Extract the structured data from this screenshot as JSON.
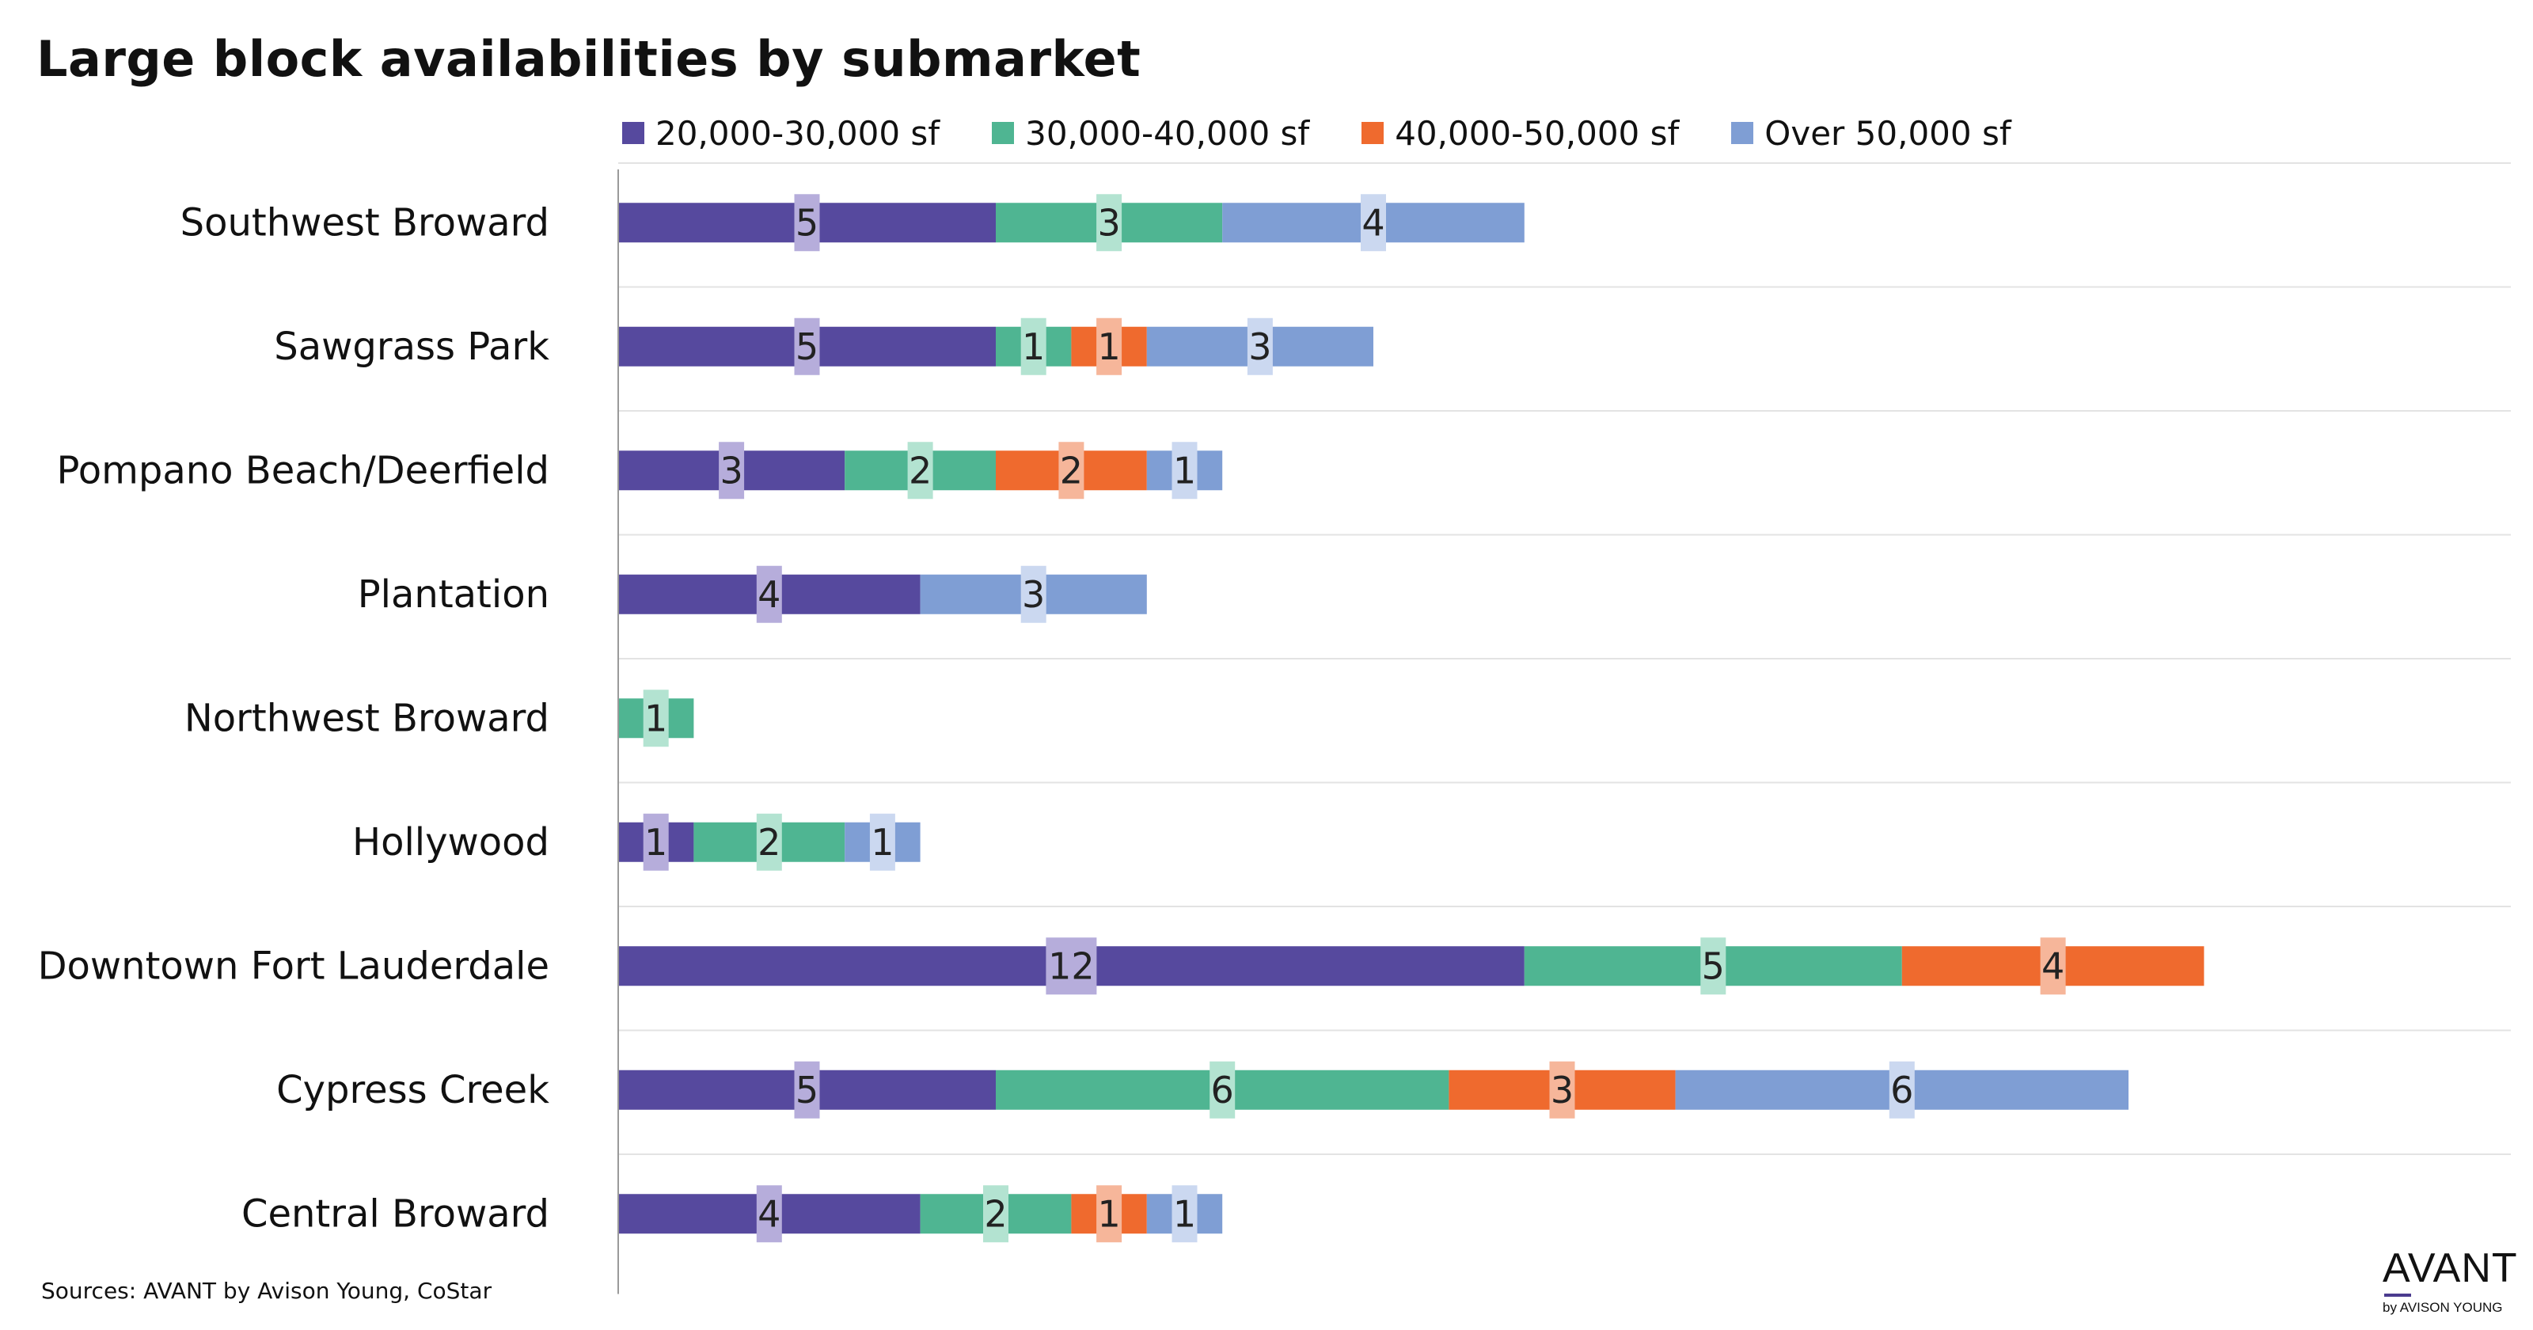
{
  "title": "Large block availabilities by submarket",
  "source": "Sources: AVANT by Avison Young, CoStar",
  "logo": {
    "word": "AVANT",
    "sub": "by AVISON YOUNG"
  },
  "colors": {
    "s1": "#56499e",
    "s2": "#4fb592",
    "s3": "#ef6a2e",
    "s4": "#7f9ed4",
    "l1": "#b6addb",
    "l2": "#b3e3d1",
    "l3": "#f6b69a",
    "l4": "#cbd8f0"
  },
  "chart_data": {
    "type": "bar",
    "orientation": "horizontal",
    "stacked": true,
    "title": "Large block availabilities by submarket",
    "legend_position": "top",
    "grid": "horizontal separators",
    "categories": [
      "Southwest Broward",
      "Sawgrass Park",
      "Pompano Beach/Deerfield",
      "Plantation",
      "Northwest Broward",
      "Hollywood",
      "Downtown Fort Lauderdale",
      "Cypress Creek",
      "Central Broward"
    ],
    "series": [
      {
        "name": "20,000-30,000 sf",
        "color": "#56499e",
        "label_color": "#b6addb",
        "values": [
          5,
          5,
          3,
          4,
          0,
          1,
          12,
          5,
          4
        ]
      },
      {
        "name": "30,000-40,000 sf",
        "color": "#4fb592",
        "label_color": "#b3e3d1",
        "values": [
          3,
          1,
          2,
          0,
          1,
          2,
          5,
          6,
          2
        ]
      },
      {
        "name": "40,000-50,000 sf",
        "color": "#ef6a2e",
        "label_color": "#f6b69a",
        "values": [
          0,
          1,
          2,
          0,
          0,
          0,
          4,
          3,
          1
        ]
      },
      {
        "name": "Over 50,000 sf",
        "color": "#7f9ed4",
        "label_color": "#cbd8f0",
        "values": [
          4,
          3,
          1,
          3,
          0,
          1,
          0,
          6,
          1
        ]
      }
    ],
    "xlim": [
      0,
      25
    ]
  }
}
